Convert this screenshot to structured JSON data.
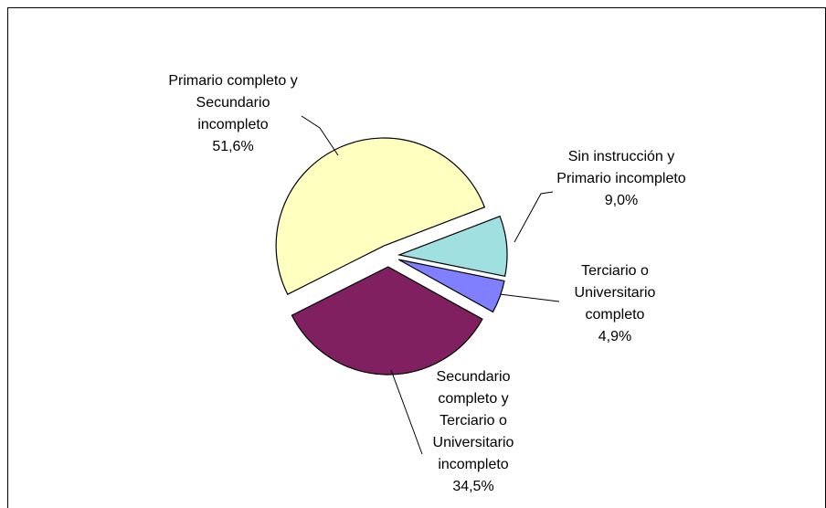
{
  "chart_data": {
    "type": "pie",
    "categories": [
      "Sin instrucción y Primario incompleto",
      "Terciario o Universitario completo",
      "Secundario completo y Terciario o Universitario incompleto",
      "Primario completo y Secundario incompleto"
    ],
    "values": [
      9.0,
      4.9,
      34.5,
      51.6
    ],
    "value_labels": [
      "9,0%",
      "4,9%",
      "34,5%",
      "51,6%"
    ],
    "colors": [
      "#a0e0e0",
      "#8080ff",
      "#802060",
      "#ffffc0"
    ]
  }
}
